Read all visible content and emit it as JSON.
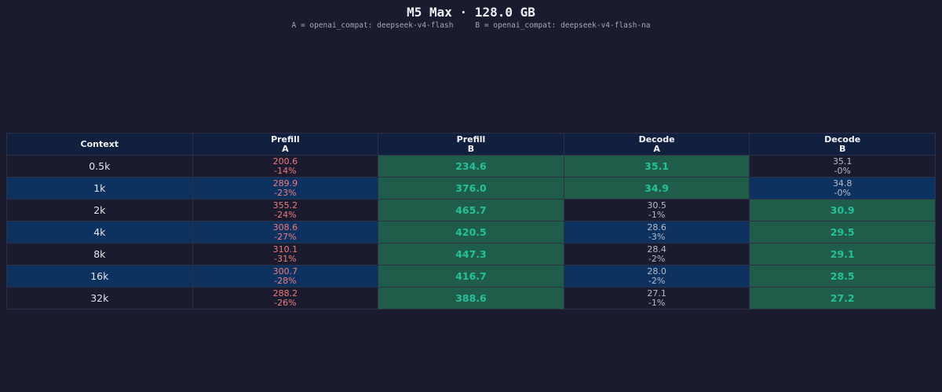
{
  "title": "M5 Max · 128.0 GB",
  "legend": {
    "a": "A = openai_compat: deepseek-v4-flash",
    "b": "B = openai_compat: deepseek-v4-flash-na"
  },
  "chart_data": {
    "type": "table",
    "columns": [
      {
        "key": "context",
        "line1": "Context",
        "line2": ""
      },
      {
        "key": "prefill_a",
        "line1": "Prefill",
        "line2": "A"
      },
      {
        "key": "prefill_b",
        "line1": "Prefill",
        "line2": "B"
      },
      {
        "key": "decode_a",
        "line1": "Decode",
        "line2": "A"
      },
      {
        "key": "decode_b",
        "line1": "Decode",
        "line2": "B"
      }
    ],
    "rows": [
      {
        "context": "0.5k",
        "prefill_a": {
          "value": "200.6",
          "delta": "-14%",
          "winner": false
        },
        "prefill_b": {
          "value": "234.6",
          "delta": "",
          "winner": true
        },
        "decode_a": {
          "value": "35.1",
          "delta": "",
          "winner": true
        },
        "decode_b": {
          "value": "35.1",
          "delta": "-0%",
          "winner": false
        }
      },
      {
        "context": "1k",
        "prefill_a": {
          "value": "289.9",
          "delta": "-23%",
          "winner": false
        },
        "prefill_b": {
          "value": "376.0",
          "delta": "",
          "winner": true
        },
        "decode_a": {
          "value": "34.9",
          "delta": "",
          "winner": true
        },
        "decode_b": {
          "value": "34.8",
          "delta": "-0%",
          "winner": false
        }
      },
      {
        "context": "2k",
        "prefill_a": {
          "value": "355.2",
          "delta": "-24%",
          "winner": false
        },
        "prefill_b": {
          "value": "465.7",
          "delta": "",
          "winner": true
        },
        "decode_a": {
          "value": "30.5",
          "delta": "-1%",
          "winner": false
        },
        "decode_b": {
          "value": "30.9",
          "delta": "",
          "winner": true
        }
      },
      {
        "context": "4k",
        "prefill_a": {
          "value": "308.6",
          "delta": "-27%",
          "winner": false
        },
        "prefill_b": {
          "value": "420.5",
          "delta": "",
          "winner": true
        },
        "decode_a": {
          "value": "28.6",
          "delta": "-3%",
          "winner": false
        },
        "decode_b": {
          "value": "29.5",
          "delta": "",
          "winner": true
        }
      },
      {
        "context": "8k",
        "prefill_a": {
          "value": "310.1",
          "delta": "-31%",
          "winner": false
        },
        "prefill_b": {
          "value": "447.3",
          "delta": "",
          "winner": true
        },
        "decode_a": {
          "value": "28.4",
          "delta": "-2%",
          "winner": false
        },
        "decode_b": {
          "value": "29.1",
          "delta": "",
          "winner": true
        }
      },
      {
        "context": "16k",
        "prefill_a": {
          "value": "300.7",
          "delta": "-28%",
          "winner": false
        },
        "prefill_b": {
          "value": "416.7",
          "delta": "",
          "winner": true
        },
        "decode_a": {
          "value": "28.0",
          "delta": "-2%",
          "winner": false
        },
        "decode_b": {
          "value": "28.5",
          "delta": "",
          "winner": true
        }
      },
      {
        "context": "32k",
        "prefill_a": {
          "value": "288.2",
          "delta": "-26%",
          "winner": false
        },
        "prefill_b": {
          "value": "388.6",
          "delta": "",
          "winner": true
        },
        "decode_a": {
          "value": "27.1",
          "delta": "-1%",
          "winner": false
        },
        "decode_b": {
          "value": "27.2",
          "delta": "",
          "winner": true
        }
      }
    ]
  },
  "colors": {
    "background": "#1a1b2e",
    "header": "#12203f",
    "row_alt": "#0e3260",
    "winner_bg": "#1f5c4a",
    "winner_text": "#25c29a",
    "negative_text": "#f07a7a"
  }
}
